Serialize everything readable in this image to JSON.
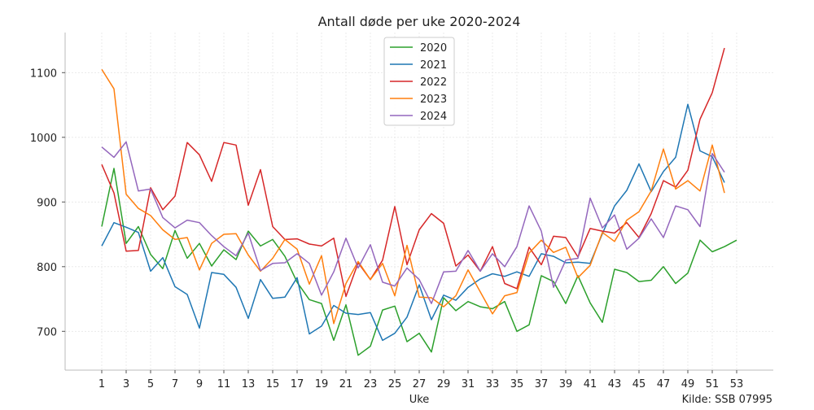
{
  "chart_data": {
    "type": "line",
    "title": "Antall døde per uke 2020-2024",
    "xlabel": "Uke",
    "ylabel": "",
    "source": "Kilde: SSB 07995",
    "xlim": [
      -2,
      56
    ],
    "ylim": [
      640,
      1162
    ],
    "xticks": [
      1,
      3,
      5,
      7,
      9,
      11,
      13,
      15,
      17,
      19,
      21,
      23,
      25,
      27,
      29,
      31,
      33,
      35,
      37,
      39,
      41,
      43,
      45,
      47,
      49,
      51,
      53
    ],
    "yticks": [
      700,
      800,
      900,
      1000,
      1100
    ],
    "grid": true,
    "legend_position": "top-center",
    "series": [
      {
        "name": "2020",
        "color": "#2ca02c",
        "values": [
          862,
          952,
          836,
          862,
          819,
          797,
          856,
          813,
          836,
          801,
          826,
          811,
          855,
          832,
          842,
          816,
          776,
          749,
          743,
          686,
          741,
          663,
          677,
          733,
          739,
          684,
          697,
          668,
          752,
          732,
          746,
          738,
          735,
          746,
          700,
          710,
          786,
          777,
          743,
          786,
          744,
          714,
          796,
          791,
          777,
          779,
          800,
          774,
          790,
          841,
          823,
          831,
          841
        ]
      },
      {
        "name": "2021",
        "color": "#1f77b4",
        "values": [
          832,
          868,
          861,
          853,
          793,
          814,
          769,
          757,
          705,
          791,
          788,
          768,
          720,
          780,
          751,
          753,
          783,
          696,
          708,
          740,
          728,
          726,
          729,
          686,
          697,
          722,
          772,
          718,
          756,
          748,
          768,
          781,
          789,
          785,
          792,
          785,
          820,
          816,
          806,
          807,
          805,
          851,
          894,
          918,
          959,
          916,
          947,
          969,
          1051,
          979,
          970,
          930
        ]
      },
      {
        "name": "2022",
        "color": "#d62728",
        "values": [
          958,
          914,
          824,
          825,
          922,
          888,
          909,
          992,
          973,
          932,
          992,
          988,
          895,
          950,
          862,
          842,
          843,
          835,
          832,
          844,
          754,
          806,
          780,
          810,
          893,
          803,
          857,
          882,
          867,
          801,
          818,
          793,
          831,
          774,
          766,
          830,
          803,
          847,
          845,
          815,
          859,
          855,
          852,
          868,
          845,
          882,
          933,
          923,
          949,
          1028,
          1069,
          1138
        ]
      },
      {
        "name": "2023",
        "color": "#ff7f0e",
        "values": [
          1105,
          1075,
          912,
          890,
          879,
          857,
          842,
          845,
          795,
          836,
          850,
          851,
          818,
          793,
          813,
          842,
          827,
          773,
          817,
          712,
          774,
          808,
          780,
          805,
          755,
          833,
          753,
          752,
          738,
          755,
          795,
          761,
          727,
          755,
          760,
          821,
          841,
          822,
          830,
          783,
          802,
          853,
          839,
          872,
          885,
          917,
          982,
          920,
          933,
          917,
          988,
          914
        ]
      },
      {
        "name": "2024",
        "color": "#9467bd",
        "values": [
          985,
          969,
          993,
          917,
          920,
          876,
          860,
          872,
          868,
          848,
          831,
          817,
          852,
          794,
          805,
          806,
          820,
          805,
          756,
          792,
          844,
          798,
          834,
          776,
          770,
          798,
          780,
          743,
          792,
          793,
          825,
          793,
          820,
          800,
          831,
          894,
          855,
          768,
          810,
          813,
          906,
          860,
          880,
          827,
          844,
          874,
          845,
          894,
          888,
          862,
          975,
          946
        ]
      }
    ]
  }
}
